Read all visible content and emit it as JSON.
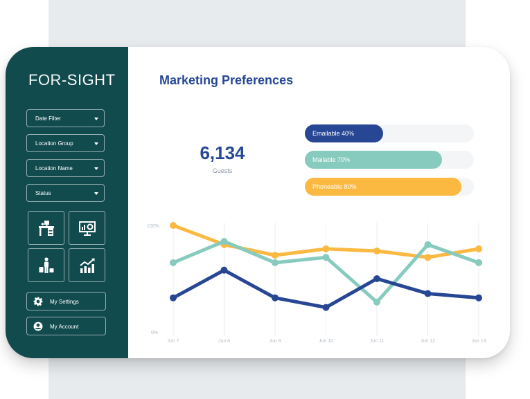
{
  "app": {
    "logo_part1": "FOR",
    "logo_sep": "-",
    "logo_part2": "SIGHT"
  },
  "sidebar": {
    "filters": [
      {
        "label": "Date Filter"
      },
      {
        "label": "Location Group"
      },
      {
        "label": "Location Name"
      },
      {
        "label": "Status"
      }
    ],
    "tiles": [
      {
        "icon": "desk-icon"
      },
      {
        "icon": "presentation-icon"
      },
      {
        "icon": "traveler-icon"
      },
      {
        "icon": "growth-chart-icon"
      }
    ],
    "buttons": [
      {
        "label": "My Settings",
        "icon": "gear-icon"
      },
      {
        "label": "My Account",
        "icon": "user-icon"
      }
    ]
  },
  "main": {
    "title": "Marketing Preferences",
    "kpi": {
      "value": "6,134",
      "label": "Guests"
    },
    "bars": [
      {
        "label": "Emailable 40%",
        "percent": 40,
        "color": "#274795"
      },
      {
        "label": "Mailable 70%",
        "percent": 70,
        "color": "#87cbbf"
      },
      {
        "label": "Phoneable 80%",
        "percent": 80,
        "color": "#fbb942"
      }
    ]
  },
  "colors": {
    "sidebar": "#124b4e",
    "title": "#274795",
    "navy": "#274795",
    "teal": "#87cbbf",
    "yellow": "#fbb942"
  },
  "chart_data": {
    "type": "line",
    "x": [
      "Jun 7",
      "Jun 8",
      "Jun 9",
      "Jun 10",
      "Jun 11",
      "Jun 12",
      "Jun 13"
    ],
    "y_tick_labels": [
      "100%",
      "0%"
    ],
    "ylim": [
      0,
      100
    ],
    "grid": "vertical",
    "series": [
      {
        "color": "#fbb942",
        "values": [
          100,
          82,
          72,
          78,
          76,
          70,
          78
        ]
      },
      {
        "color": "#87cbbf",
        "values": [
          65,
          85,
          65,
          70,
          28,
          82,
          65
        ]
      },
      {
        "color": "#274795",
        "values": [
          32,
          58,
          32,
          23,
          50,
          36,
          32
        ]
      }
    ]
  }
}
